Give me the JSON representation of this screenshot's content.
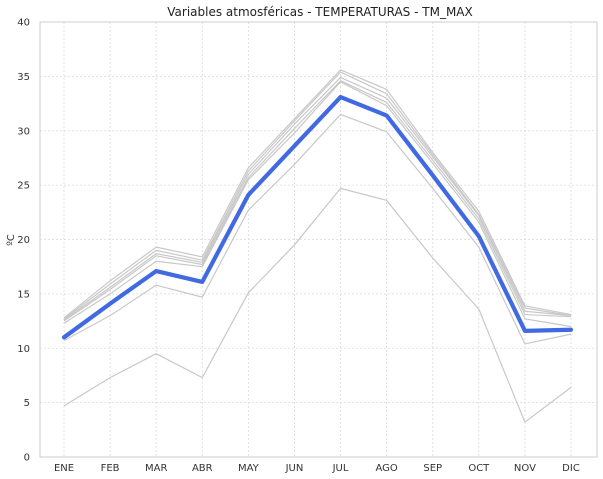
{
  "chart_data": {
    "type": "line",
    "title": "Variables atmosféricas - TEMPERATURAS - TM_MAX",
    "xlabel": "",
    "ylabel": "ºC",
    "categories": [
      "ENE",
      "FEB",
      "MAR",
      "ABR",
      "MAY",
      "JUN",
      "JUL",
      "AGO",
      "SEP",
      "OCT",
      "NOV",
      "DIC"
    ],
    "ylim": [
      0,
      40
    ],
    "yticks": [
      0,
      5,
      10,
      15,
      20,
      25,
      30,
      35,
      40
    ],
    "grid": true,
    "highlight_color": "#4169e1",
    "background_color": "#c8c8c8",
    "highlight": {
      "values": [
        11.0,
        14.1,
        17.1,
        16.1,
        24.1,
        28.6,
        33.1,
        31.4,
        25.9,
        20.3,
        11.6,
        11.7
      ]
    },
    "series": [
      {
        "values": [
          12.8,
          16.2,
          19.3,
          18.4,
          26.6,
          31.1,
          35.6,
          33.8,
          28.0,
          22.6,
          13.9,
          13.1
        ]
      },
      {
        "values": [
          12.7,
          15.9,
          19.0,
          18.1,
          26.3,
          30.9,
          35.4,
          33.4,
          27.8,
          22.3,
          13.7,
          13.0
        ]
      },
      {
        "values": [
          12.6,
          15.6,
          18.7,
          17.9,
          26.0,
          30.6,
          34.9,
          33.0,
          27.6,
          22.2,
          13.4,
          13.0
        ]
      },
      {
        "values": [
          12.5,
          15.4,
          18.5,
          17.7,
          25.7,
          30.2,
          34.6,
          32.6,
          27.3,
          21.9,
          13.1,
          12.9
        ]
      },
      {
        "values": [
          12.3,
          15.0,
          18.0,
          17.5,
          25.5,
          29.8,
          34.5,
          32.3,
          27.0,
          21.6,
          12.7,
          12.0
        ]
      },
      {
        "values": [
          10.7,
          13.0,
          15.8,
          14.7,
          22.7,
          26.9,
          31.5,
          29.9,
          24.7,
          19.3,
          10.4,
          11.3
        ]
      },
      {
        "values": [
          4.7,
          7.3,
          9.5,
          7.3,
          15.1,
          19.5,
          24.7,
          23.6,
          18.3,
          13.6,
          3.2,
          6.4
        ]
      }
    ]
  }
}
